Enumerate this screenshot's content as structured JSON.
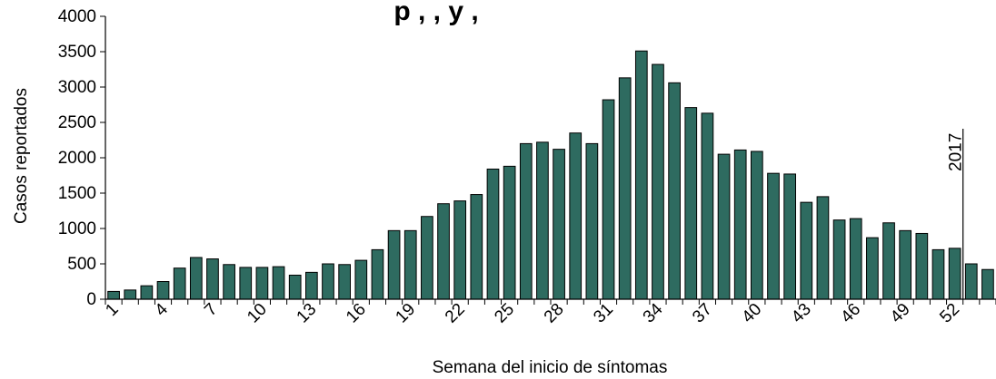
{
  "chart_data": {
    "type": "bar",
    "title": "p , , y ,",
    "xlabel": "Semana del inicio de síntomas",
    "ylabel": "Casos reportados",
    "ylim": [
      0,
      4000
    ],
    "yticks": [
      0,
      500,
      1000,
      1500,
      2000,
      2500,
      3000,
      3500,
      4000
    ],
    "xtick_labels": [
      "1",
      "4",
      "7",
      "10",
      "13",
      "16",
      "19",
      "22",
      "25",
      "28",
      "31",
      "34",
      "37",
      "40",
      "43",
      "46",
      "49",
      "52"
    ],
    "bar_color": "#2e6b60",
    "categories": [
      1,
      2,
      3,
      4,
      5,
      6,
      7,
      8,
      9,
      10,
      11,
      12,
      13,
      14,
      15,
      16,
      17,
      18,
      19,
      20,
      21,
      22,
      23,
      24,
      25,
      26,
      27,
      28,
      29,
      30,
      31,
      32,
      33,
      34,
      35,
      36,
      37,
      38,
      39,
      40,
      41,
      42,
      43,
      44,
      45,
      46,
      47,
      48,
      49,
      50,
      51,
      52,
      53,
      54
    ],
    "values": [
      110,
      130,
      190,
      250,
      440,
      590,
      570,
      490,
      450,
      450,
      460,
      340,
      380,
      500,
      490,
      550,
      700,
      970,
      970,
      1170,
      1350,
      1390,
      1480,
      1840,
      1880,
      2200,
      2220,
      2120,
      2350,
      2200,
      2820,
      3130,
      3510,
      3320,
      3060,
      2710,
      2630,
      2050,
      2110,
      2090,
      1780,
      1770,
      1370,
      1450,
      1120,
      1140,
      870,
      1080,
      970,
      930,
      700,
      720,
      500,
      420
    ],
    "annotation": {
      "text": "2017",
      "after_category": 52
    }
  }
}
